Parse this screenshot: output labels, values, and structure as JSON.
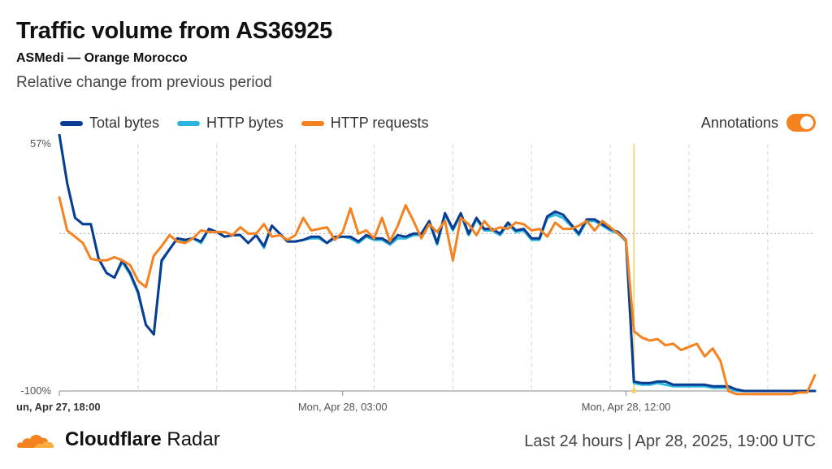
{
  "header": {
    "title": "Traffic volume from AS36925",
    "subtitle": "ASMedi — Orange Morocco",
    "description": "Relative change from previous period"
  },
  "legend": {
    "total_bytes": "Total bytes",
    "http_bytes": "HTTP bytes",
    "http_requests": "HTTP requests"
  },
  "annotations": {
    "label": "Annotations",
    "enabled": true
  },
  "footer": {
    "brand_bold": "Cloudflare",
    "brand_light": " Radar",
    "range": "Last 24 hours | Apr 28, 2025, 19:00 UTC"
  },
  "colors": {
    "total_bytes": "#0a3d91",
    "http_bytes": "#2cb5e0",
    "http_requests": "#f58220",
    "accent": "#f58220"
  },
  "chart_data": {
    "type": "line",
    "title": "Traffic volume from AS36925",
    "y_tick_labels": [
      "57%",
      "-100%"
    ],
    "ylim": [
      -100,
      57
    ],
    "x_tick_labels": [
      "un, Apr 27, 18:00",
      "Mon, Apr 28, 03:00",
      "Mon, Apr 28, 12:00"
    ],
    "x_tick_index": [
      0,
      36,
      72
    ],
    "annotation_index": 73,
    "annotation_color": "#f5d060",
    "legend_position": "top-left",
    "grid": true,
    "series": [
      {
        "name": "Total bytes",
        "color": "#0a3d91",
        "values": [
          63,
          32,
          10,
          6,
          6,
          -16,
          -25,
          -28,
          -17,
          -25,
          -37,
          -58,
          -64,
          -17,
          -10,
          -3,
          -4,
          -3,
          -5,
          3,
          1,
          -2,
          -1,
          -1,
          -6,
          -1,
          -8,
          5,
          0,
          -5,
          -5,
          -4,
          -2,
          -2,
          -6,
          -2,
          -2,
          -2,
          -5,
          -1,
          -3,
          -3,
          -6,
          -1,
          -2,
          0,
          0,
          8,
          -6,
          13,
          3,
          13,
          0,
          10,
          3,
          3,
          0,
          7,
          2,
          3,
          -3,
          -3,
          11,
          14,
          12,
          6,
          0,
          9,
          9,
          6,
          3,
          1,
          -4,
          -94,
          -95,
          -95,
          -94,
          -94,
          -96,
          -96,
          -96,
          -96,
          -96,
          -97,
          -97,
          -97,
          -99,
          -100,
          -100,
          -100,
          -100,
          -100,
          -100,
          -100,
          -100,
          -100,
          -100
        ]
      },
      {
        "name": "HTTP bytes",
        "color": "#2cb5e0",
        "values": [
          63,
          32,
          10,
          6,
          6,
          -16,
          -25,
          -28,
          -18,
          -26,
          -38,
          -58,
          -64,
          -18,
          -10,
          -3,
          -5,
          -3,
          -6,
          3,
          1,
          -2,
          -1,
          -1,
          -6,
          -1,
          -9,
          5,
          0,
          -5,
          -5,
          -4,
          -3,
          -3,
          -6,
          -3,
          -2,
          -3,
          -6,
          -2,
          -4,
          -4,
          -7,
          -3,
          -3,
          -1,
          -1,
          7,
          -7,
          12,
          2,
          12,
          -1,
          9,
          2,
          2,
          -1,
          6,
          1,
          2,
          -4,
          -4,
          10,
          12,
          10,
          5,
          -1,
          8,
          8,
          5,
          2,
          0,
          -5,
          -95,
          -96,
          -96,
          -95,
          -96,
          -97,
          -97,
          -97,
          -97,
          -97,
          -98,
          -98,
          -98,
          -100,
          -100,
          -100,
          -100,
          -100,
          -100,
          -100,
          -100,
          -100,
          -100,
          -100
        ]
      },
      {
        "name": "HTTP requests",
        "color": "#f58220",
        "values": [
          23,
          2,
          -2,
          -6,
          -16,
          -17,
          -17,
          -15,
          -17,
          -20,
          -30,
          -34,
          -14,
          -8,
          -1,
          -5,
          -6,
          -3,
          2,
          1,
          1,
          1,
          -1,
          4,
          0,
          0,
          6,
          -2,
          -1,
          -4,
          -1,
          10,
          2,
          3,
          4,
          -4,
          1,
          16,
          0,
          2,
          -3,
          10,
          -5,
          5,
          18,
          8,
          -3,
          6,
          1,
          8,
          -17,
          10,
          6,
          -1,
          8,
          2,
          4,
          3,
          7,
          6,
          2,
          3,
          -2,
          7,
          3,
          3,
          5,
          8,
          2,
          8,
          4,
          0,
          -4,
          -62,
          -66,
          -68,
          -67,
          -71,
          -70,
          -74,
          -72,
          -70,
          -78,
          -73,
          -81,
          -100,
          -102,
          -102,
          -102,
          -102,
          -102,
          -102,
          -102,
          -102,
          -101,
          -101,
          -90
        ]
      }
    ]
  }
}
